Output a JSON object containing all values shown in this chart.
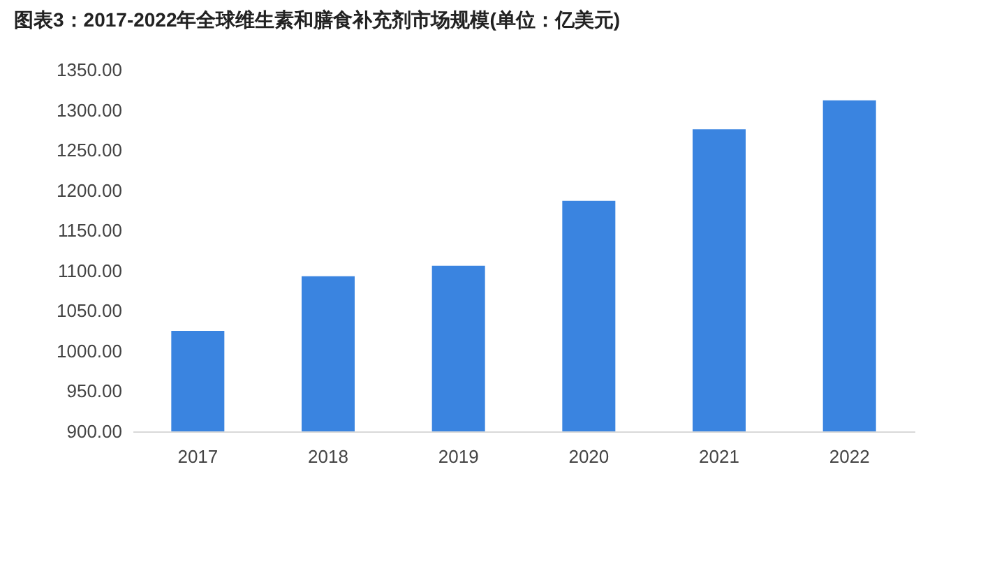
{
  "chart_data": {
    "type": "bar",
    "title": "图表3：2017-2022年全球维生素和膳食补充剂市场规模(单位：亿美元)",
    "categories": [
      "2017",
      "2018",
      "2019",
      "2020",
      "2021",
      "2022"
    ],
    "values": [
      1025,
      1093,
      1106,
      1187,
      1276,
      1312
    ],
    "color": "#3a84e0",
    "ylim": [
      900,
      1350
    ],
    "yticks": [
      {
        "value": 900,
        "label": "900.00"
      },
      {
        "value": 950,
        "label": "950.00"
      },
      {
        "value": 1000,
        "label": "1000.00"
      },
      {
        "value": 1050,
        "label": "1050.00"
      },
      {
        "value": 1100,
        "label": "1100.00"
      },
      {
        "value": 1150,
        "label": "1150.00"
      },
      {
        "value": 1200,
        "label": "1200.00"
      },
      {
        "value": 1250,
        "label": "1250.00"
      },
      {
        "value": 1300,
        "label": "1300.00"
      },
      {
        "value": 1350,
        "label": "1350.00"
      }
    ],
    "grid": false
  }
}
